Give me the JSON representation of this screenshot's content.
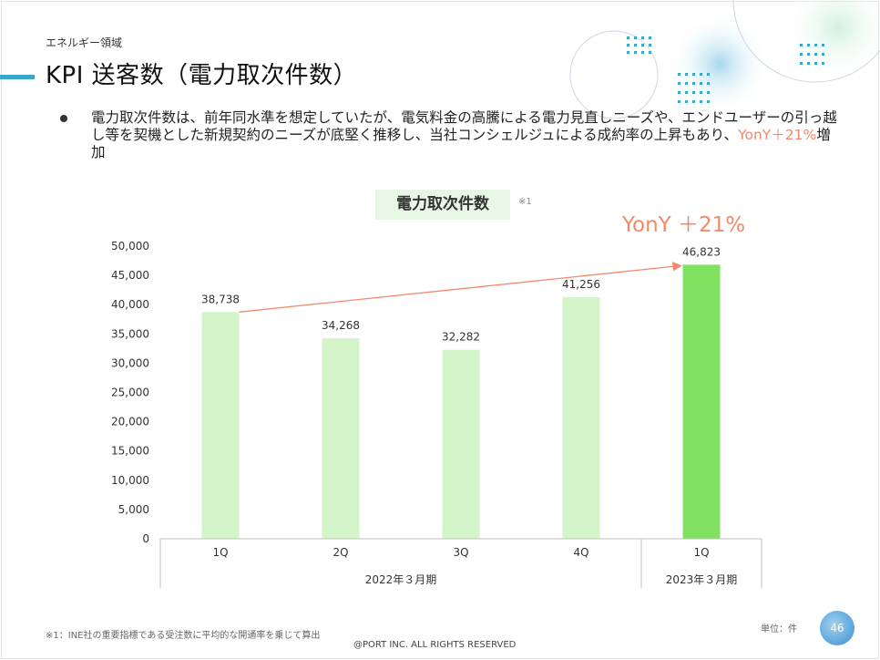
{
  "header": {
    "category": "エネルギー領域",
    "title": "KPI 送客数（電力取次件数）"
  },
  "bullet": {
    "text_part1": "電力取次件数は、前年同水準を想定していたが、電気料金の高騰による電力見直しニーズや、エンドユーザーの引っ越し等を契機とした新規契約のニーズが底堅く推移し、当社コンシェルジュによる成約率の上昇もあり、",
    "text_accent": "YonY＋21%",
    "text_part2": "増加"
  },
  "chart_label": {
    "note_marker": "※1",
    "yony_label": "YonY ＋21%"
  },
  "chart_data": {
    "type": "bar",
    "title": "電力取次件数",
    "categories": [
      "1Q",
      "2Q",
      "3Q",
      "4Q",
      "1Q"
    ],
    "groups": [
      {
        "label": "2022年３月期",
        "categories": [
          "1Q",
          "2Q",
          "3Q",
          "4Q"
        ]
      },
      {
        "label": "2023年３月期",
        "categories": [
          "1Q"
        ]
      }
    ],
    "values": [
      38738,
      34268,
      32282,
      41256,
      46823
    ],
    "value_labels": [
      "38,738",
      "34,268",
      "32,282",
      "41,256",
      "46,823"
    ],
    "ylim": [
      0,
      50000
    ],
    "yticks": [
      0,
      5000,
      10000,
      15000,
      20000,
      25000,
      30000,
      35000,
      40000,
      45000,
      50000
    ],
    "ytick_labels": [
      "0",
      "5,000",
      "10,000",
      "15,000",
      "20,000",
      "25,000",
      "30,000",
      "35,000",
      "40,000",
      "45,000",
      "50,000"
    ],
    "colors": {
      "previous": "#d4f5c9",
      "highlight": "#80e060",
      "arrow": "#f08a6a"
    },
    "grid": false
  },
  "footer": {
    "footnote": "※1：INE社の重要指標である受注数に平均的な開通率を乗じて算出",
    "unit": "単位：件",
    "copyright": "@PORT INC. ALL RIGHTS RESERVED",
    "page_number": "46"
  }
}
